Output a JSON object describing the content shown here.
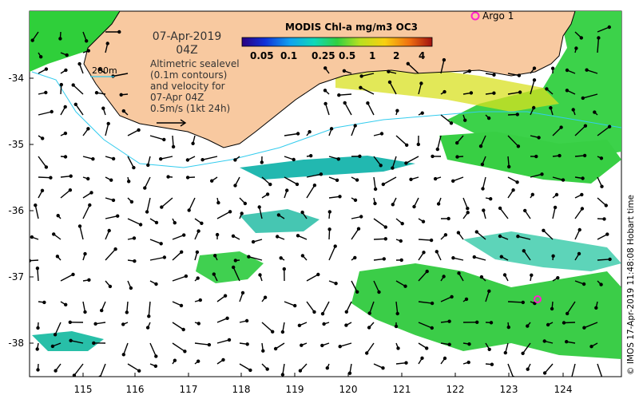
{
  "map": {
    "date": "07-Apr-2019",
    "time": "04Z",
    "contour_scale_label": "200m",
    "legend_lines": [
      "Altimetric sealevel",
      "(0.1m contours)",
      "and velocity for",
      "07-Apr 04Z",
      "0.5m/s (1kt 24h)"
    ],
    "colorbar": {
      "title": "MODIS Chl-a mg/m3 OC3",
      "ticks": [
        "0.05",
        "0.1",
        "0.25",
        "0.5",
        "1",
        "2",
        "4"
      ]
    },
    "argo_label": "Argo 1",
    "credit": "© IMOS 17-Apr-2019 11:48:08 Hobart time",
    "x_ticks": [
      "115",
      "116",
      "117",
      "118",
      "119",
      "120",
      "121",
      "122",
      "123",
      "124"
    ],
    "y_ticks": [
      "-34",
      "-35",
      "-36",
      "-37",
      "-38"
    ],
    "colors": {
      "land": "#f8c9a0",
      "coast_line": "#000000",
      "contour": "#33ccee",
      "chl_green": "#22cc33",
      "chl_teal": "#20b8a8",
      "argo_marker": "#ff22cc"
    }
  }
}
